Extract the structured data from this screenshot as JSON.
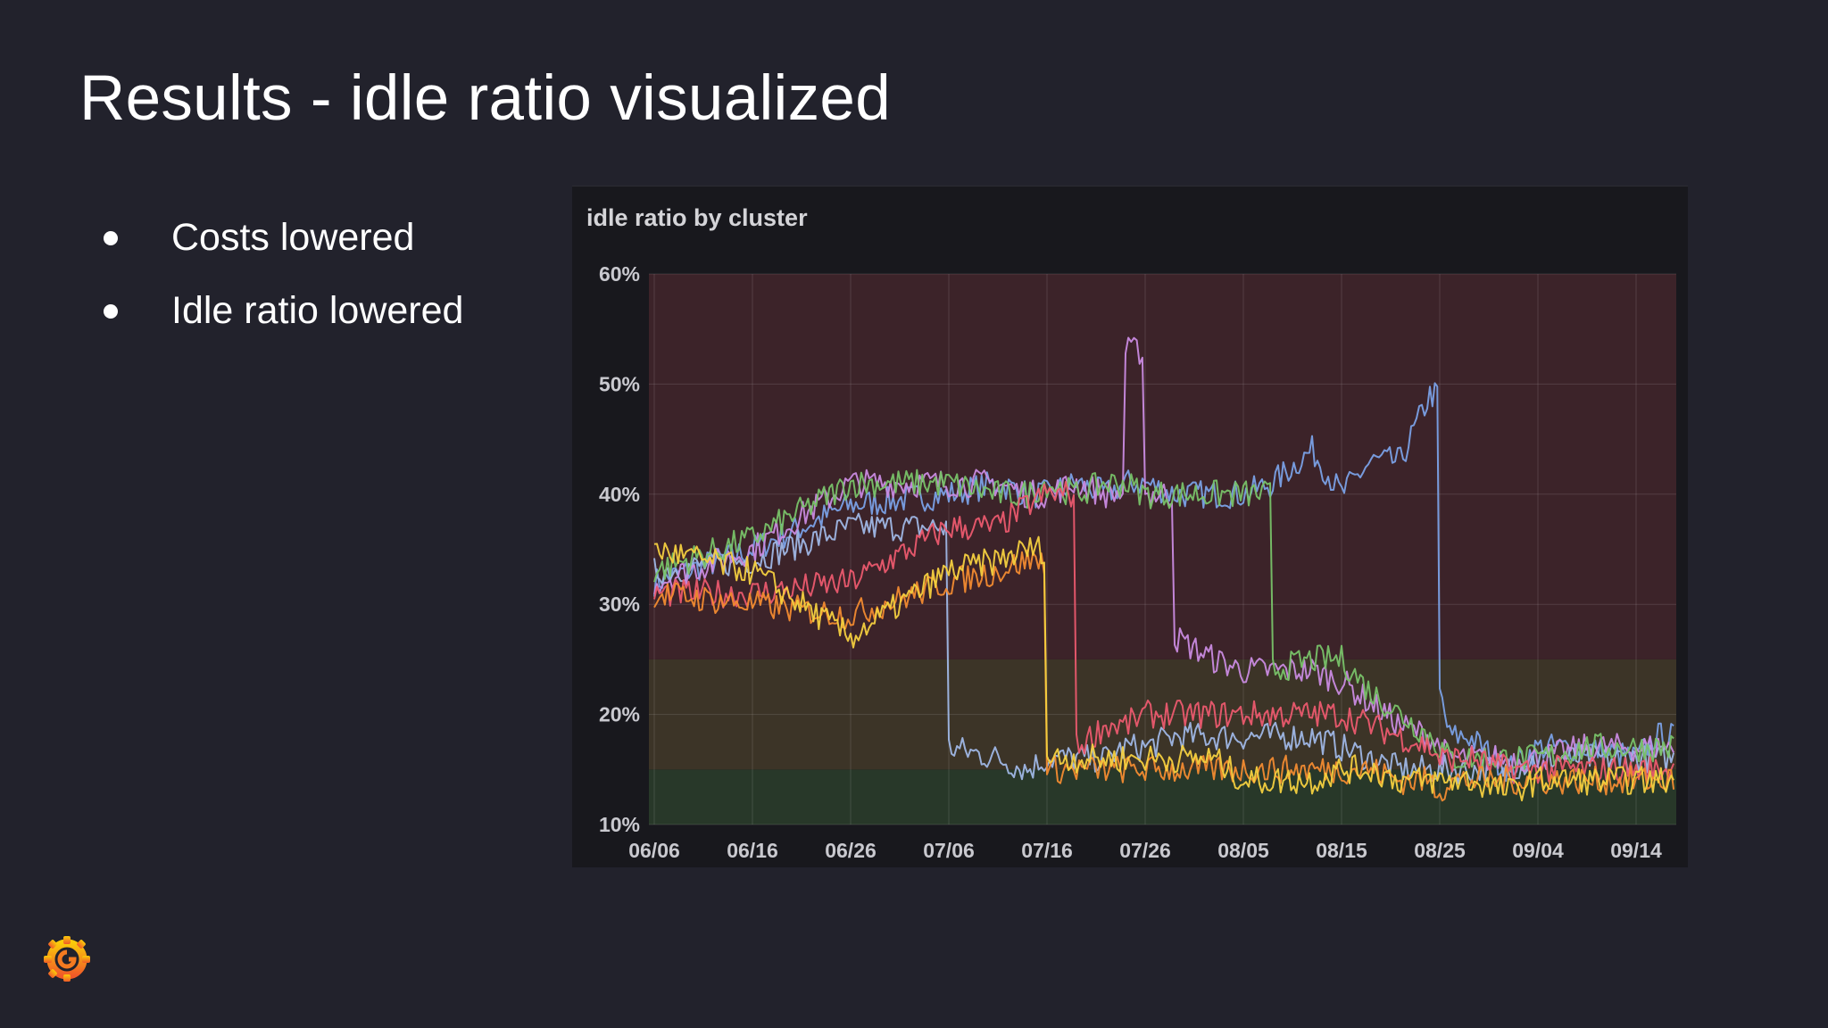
{
  "slide": {
    "title": "Results - idle ratio visualized",
    "bullets": [
      "Costs lowered",
      "Idle ratio lowered"
    ],
    "logo_icon": "grafana-logo-icon"
  },
  "chart_data": {
    "type": "line",
    "title": "idle ratio by cluster",
    "xlabel": "",
    "ylabel": "",
    "x_ticks": [
      "06/06",
      "06/16",
      "06/26",
      "07/06",
      "07/16",
      "07/26",
      "08/05",
      "08/15",
      "08/25",
      "09/04",
      "09/14"
    ],
    "x": [
      "06/06",
      "06/16",
      "06/26",
      "07/06",
      "07/11",
      "07/14",
      "07/16",
      "07/19",
      "07/22",
      "07/24",
      "07/26",
      "07/29",
      "08/02",
      "08/05",
      "08/08",
      "08/12",
      "08/15",
      "08/18",
      "08/21",
      "08/24",
      "08/25",
      "08/26",
      "08/28",
      "09/01",
      "09/04",
      "09/09",
      "09/14",
      "09/16"
    ],
    "y_ticks": [
      "10%",
      "20%",
      "30%",
      "40%",
      "50%",
      "60%"
    ],
    "ylim": [
      10,
      60
    ],
    "unit": "%",
    "thresholds": [
      {
        "from": 10,
        "to": 15,
        "color": "#283829"
      },
      {
        "from": 15,
        "to": 25,
        "color": "#3c3427"
      },
      {
        "from": 25,
        "to": 60,
        "color": "#3c2329"
      }
    ],
    "grid": true,
    "legend": "none",
    "series": [
      {
        "color": "#7aa1e6",
        "values": [
          32,
          35,
          39,
          40,
          41,
          40,
          40,
          41,
          40,
          41,
          41,
          40,
          40,
          40,
          41,
          44,
          40,
          43,
          43,
          49,
          22,
          18,
          18,
          15,
          17,
          17,
          16,
          18
        ]
      },
      {
        "color": "#9fb7e5",
        "values": [
          33,
          34,
          37,
          17,
          16,
          15,
          16,
          16,
          16,
          17,
          17,
          18,
          18,
          18,
          18,
          18,
          17,
          16,
          15,
          15,
          15,
          15,
          15,
          15,
          16,
          16,
          16,
          16
        ]
      },
      {
        "color": "#c98be0",
        "values": [
          32,
          35,
          41,
          41,
          41,
          40,
          40,
          41,
          40,
          53,
          40,
          27,
          25,
          24,
          24,
          24,
          23,
          21,
          19,
          18,
          17,
          16,
          16,
          16,
          16,
          17,
          17,
          17
        ]
      },
      {
        "color": "#78c268",
        "values": [
          33,
          36,
          41,
          41,
          40,
          40,
          41,
          40,
          41,
          41,
          40,
          40,
          40,
          40,
          24,
          25,
          25,
          22,
          20,
          18,
          17,
          16,
          16,
          16,
          16,
          17,
          17,
          17
        ]
      },
      {
        "color": "#eb5a6e",
        "values": [
          31,
          31,
          32,
          37,
          37,
          39,
          40,
          17,
          19,
          19,
          20,
          20,
          20,
          20,
          20,
          20,
          20,
          19,
          18,
          17,
          16,
          16,
          16,
          15,
          15,
          15,
          15,
          15
        ]
      },
      {
        "color": "#f28b30",
        "values": [
          31,
          30,
          29,
          32,
          33,
          34,
          15,
          15,
          15,
          15,
          15,
          15,
          15,
          15,
          15,
          15,
          15,
          15,
          14,
          14,
          13,
          14,
          14,
          14,
          14,
          14,
          14,
          14
        ]
      },
      {
        "color": "#f4d03f",
        "values": [
          35,
          33,
          27,
          33,
          34,
          35,
          16,
          16,
          16,
          16,
          16,
          16,
          16,
          14,
          14,
          14,
          15,
          15,
          14,
          14,
          14,
          14,
          14,
          13,
          14,
          14,
          14,
          14
        ]
      }
    ]
  }
}
